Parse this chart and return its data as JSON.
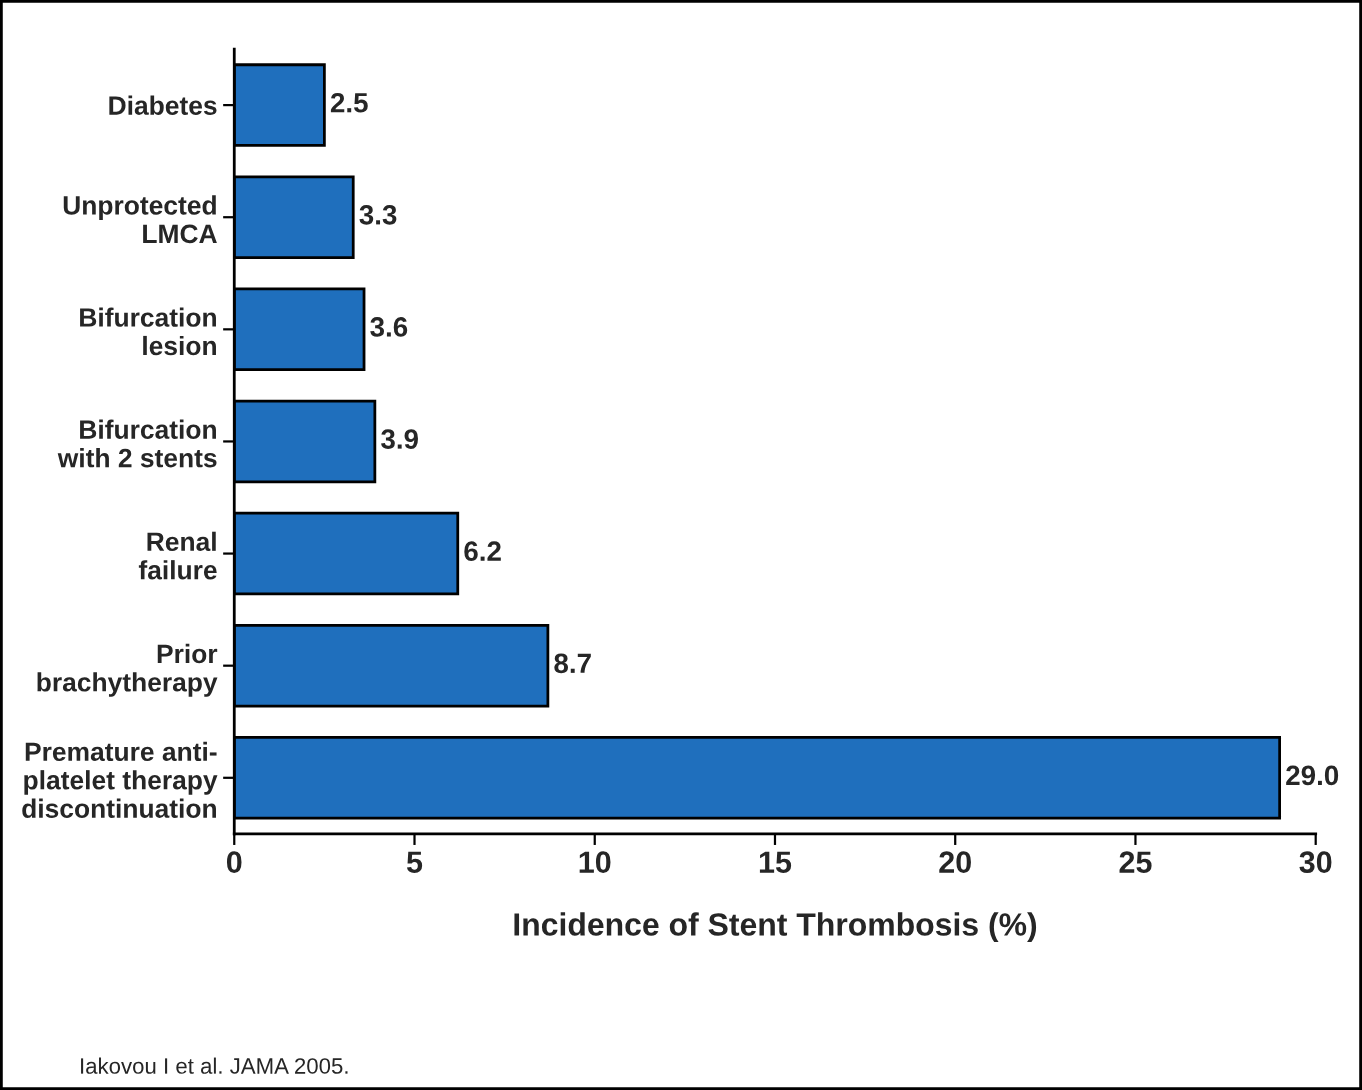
{
  "chart_data": {
    "type": "bar",
    "orientation": "horizontal",
    "categories": [
      "Diabetes",
      "Unprotected\nLMCA",
      "Bifurcation\nlesion",
      "Bifurcation\nwith 2 stents",
      "Renal\nfailure",
      "Prior\nbrachytherapy",
      "Premature anti-\nplatelet therapy\ndiscontinuation"
    ],
    "values": [
      2.5,
      3.3,
      3.6,
      3.9,
      6.2,
      8.7,
      29.0
    ],
    "color": "#1f6fbd",
    "xlabel": "Incidence of Stent Thrombosis (%)",
    "xlim": [
      0,
      30
    ],
    "xticks": [
      0,
      5,
      10,
      15,
      20,
      25,
      30
    ],
    "value_labels": [
      "2.5",
      "3.3",
      "3.6",
      "3.9",
      "6.2",
      "8.7",
      "29.0"
    ],
    "grid": false,
    "annotations": [
      "Iakovou I et al. JAMA 2005."
    ]
  }
}
